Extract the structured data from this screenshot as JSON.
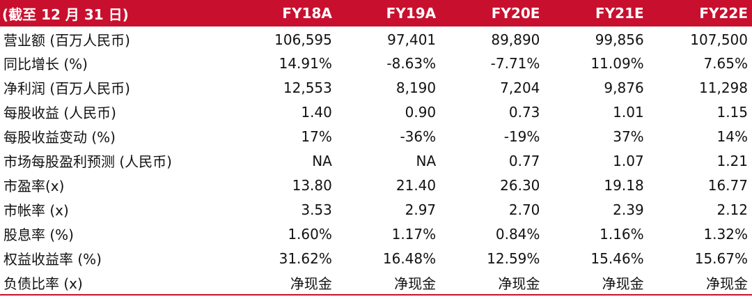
{
  "header": [
    "(截至 12 月 31 日)",
    "FY18A",
    "FY19A",
    "FY20E",
    "FY21E",
    "FY22E"
  ],
  "rows": [
    {
      "label": "营业额 (百万人民币)",
      "values": [
        "106,595",
        "97,401",
        "89,890",
        "99,856",
        "107,500"
      ]
    },
    {
      "label": "同比增长 (%)",
      "values": [
        "14.91%",
        "-8.63%",
        "-7.71%",
        "11.09%",
        "7.65%"
      ]
    },
    {
      "label": "净利润 (百万人民币)",
      "values": [
        "12,553",
        "8,190",
        "7,204",
        "9,876",
        "11,298"
      ]
    },
    {
      "label": "每股收益 (人民币)",
      "values": [
        "1.40",
        "0.90",
        "0.73",
        "1.01",
        "1.15"
      ]
    },
    {
      "label": "每股收益变动 (%)",
      "values": [
        "17%",
        "-36%",
        "-19%",
        "37%",
        "14%"
      ]
    },
    {
      "label": "市场每股盈利预测 (人民币)",
      "values": [
        "NA",
        "NA",
        "0.77",
        "1.07",
        "1.21"
      ]
    },
    {
      "label": "市盈率(x)",
      "values": [
        "13.80",
        "21.40",
        "26.30",
        "19.18",
        "16.77"
      ]
    },
    {
      "label": "市帐率 (x)",
      "values": [
        "3.53",
        "2.97",
        "2.70",
        "2.39",
        "2.12"
      ]
    },
    {
      "label": "股息率 (%)",
      "values": [
        "1.60%",
        "1.17%",
        "0.84%",
        "1.16%",
        "1.32%"
      ]
    },
    {
      "label": "权益收益率 (%)",
      "values": [
        "31.62%",
        "16.48%",
        "12.59%",
        "15.46%",
        "15.67%"
      ]
    },
    {
      "label": "负债比率 (x)",
      "values": [
        "净现金",
        "净现金",
        "净现金",
        "净现金",
        "净现金"
      ]
    }
  ],
  "colors": {
    "header_bg": "#c8102e",
    "header_text": "#ffffff",
    "rule": "#c8102e"
  }
}
